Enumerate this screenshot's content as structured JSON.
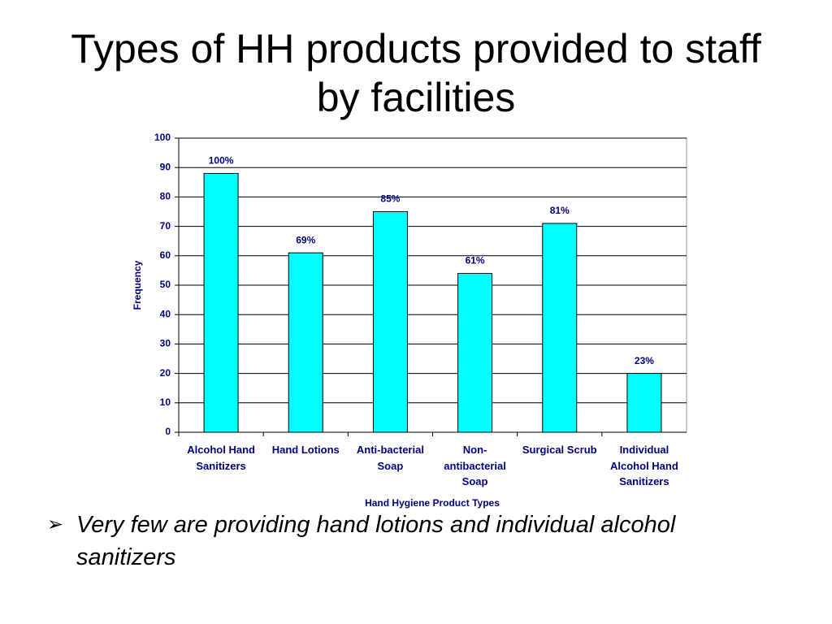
{
  "title": "Types of HH products provided to staff by facilities",
  "bullet": "Very few are providing hand lotions and individual alcohol sanitizers",
  "chart_data": {
    "type": "bar",
    "categories": [
      "Alcohol Hand Sanitizers",
      "Hand Lotions",
      "Anti-bacterial Soap",
      "Non-antibacterial Soap",
      "Surgical Scrub",
      "Individual Alcohol Hand Sanitizers"
    ],
    "values": [
      88,
      61,
      75,
      54,
      71,
      20
    ],
    "annotations": [
      "100%",
      "69%",
      "85%",
      "61%",
      "81%",
      "23%"
    ],
    "color": "#00ffff",
    "ylim": [
      0,
      100
    ],
    "yticks": [
      0,
      10,
      20,
      30,
      40,
      50,
      60,
      70,
      80,
      90,
      100
    ],
    "grid": true,
    "x_label": "Hand Hygiene Product Types",
    "y_label": "Frequency"
  }
}
